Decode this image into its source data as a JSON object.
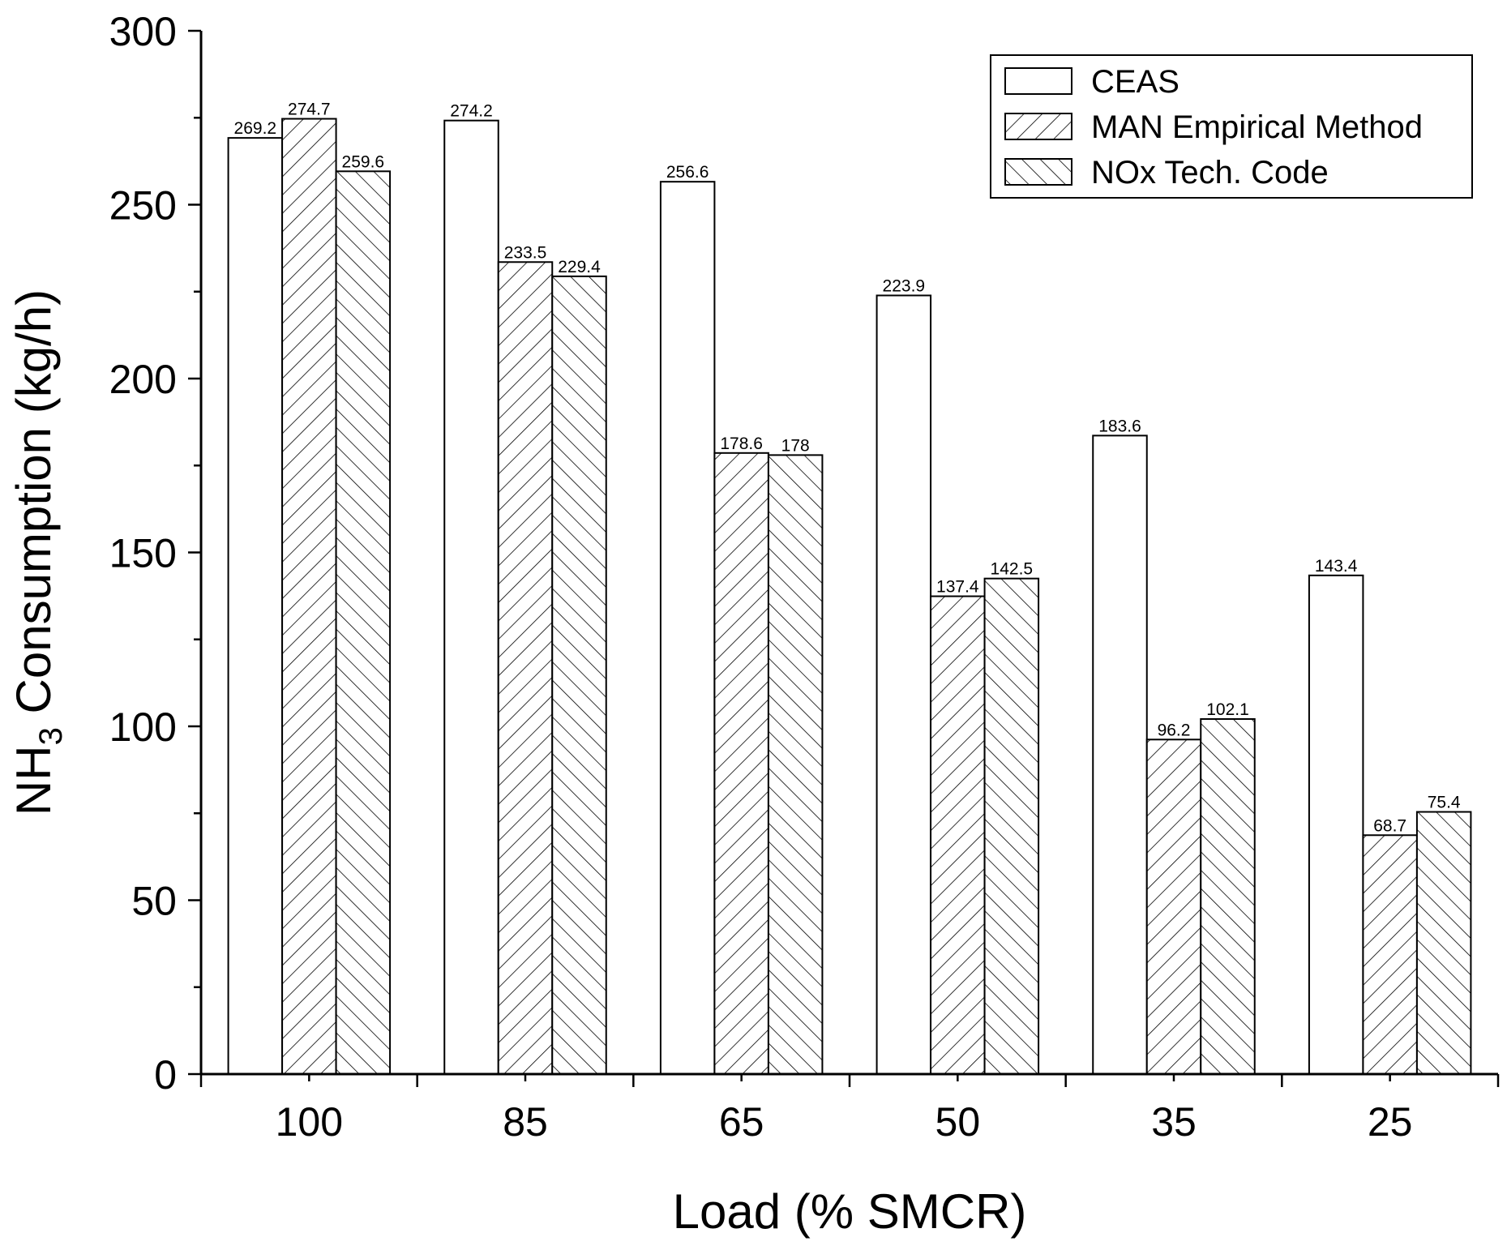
{
  "chart_data": {
    "type": "bar",
    "title": "",
    "xlabel": "Load (% SMCR)",
    "ylabel_main": "NH",
    "ylabel_sub": "3",
    "ylabel_rest": " Consumption (kg/h)",
    "ylim": [
      0,
      300
    ],
    "yticks": [
      0,
      50,
      100,
      150,
      200,
      250,
      300
    ],
    "categories": [
      "100",
      "85",
      "65",
      "50",
      "35",
      "25"
    ],
    "series": [
      {
        "name": "CEAS",
        "pattern": "none",
        "values": [
          269.2,
          274.2,
          256.6,
          223.9,
          183.6,
          143.4
        ],
        "labels": [
          "269.2",
          "274.2",
          "256.6",
          "223.9",
          "183.6",
          "143.4"
        ]
      },
      {
        "name": "MAN Empirical Method",
        "pattern": "forward-diagonal",
        "values": [
          274.7,
          233.5,
          178.6,
          137.4,
          96.2,
          68.7
        ],
        "labels": [
          "274.7",
          "233.5",
          "178.6",
          "137.4",
          "96.2",
          "68.7"
        ]
      },
      {
        "name": "NOx Tech. Code",
        "pattern": "back-diagonal",
        "values": [
          259.6,
          229.4,
          178,
          142.5,
          102.1,
          75.4
        ],
        "labels": [
          "259.6",
          "229.4",
          "178",
          "142.5",
          "102.1",
          "75.4"
        ]
      }
    ],
    "legend_position": "top-right",
    "grid": false,
    "colors": {
      "bar_fill": "#ffffff",
      "bar_stroke": "#000000",
      "axis": "#000000"
    }
  }
}
